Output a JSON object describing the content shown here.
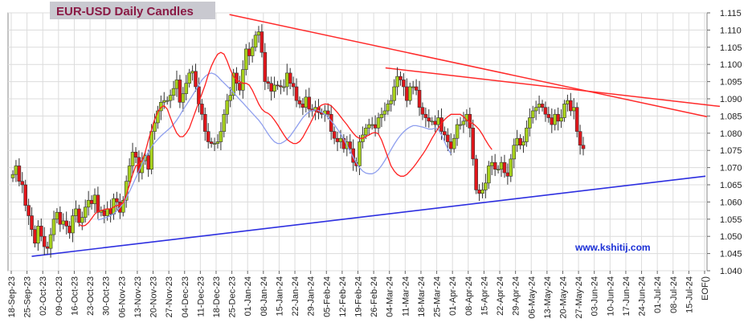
{
  "chart_data": {
    "type": "candlestick",
    "title": "EUR-USD Daily  Candles",
    "watermark": "www.kshitij.com",
    "xlabel": "",
    "ylabel": "",
    "ylim": [
      1.04,
      1.115
    ],
    "y_ticks": [
      "1.040",
      "1.045",
      "1.050",
      "1.055",
      "1.060",
      "1.065",
      "1.070",
      "1.075",
      "1.080",
      "1.085",
      "1.090",
      "1.095",
      "1.100",
      "1.105",
      "1.110",
      "1.115"
    ],
    "x_ticks": [
      "18-Sep-23",
      "25-Sep-23",
      "02-Oct-23",
      "09-Oct-23",
      "16-Oct-23",
      "23-Oct-23",
      "30-Oct-23",
      "06-Nov-23",
      "13-Nov-23",
      "20-Nov-23",
      "27-Nov-23",
      "04-Dec-23",
      "11-Dec-23",
      "18-Dec-23",
      "25-Dec-23",
      "01-Jan-24",
      "08-Jan-24",
      "15-Jan-24",
      "22-Jan-24",
      "29-Jan-24",
      "05-Feb-24",
      "12-Feb-24",
      "19-Feb-24",
      "26-Feb-24",
      "04-Mar-24",
      "11-Mar-24",
      "18-Mar-24",
      "25-Mar-24",
      "01-Apr-24",
      "08-Apr-24",
      "15-Apr-24",
      "22-Apr-24",
      "29-Apr-24",
      "06-May-24",
      "13-May-24",
      "20-May-24",
      "27-May-24",
      "03-Jun-24",
      "10-Jun-24",
      "17-Jun-24",
      "24-Jun-24",
      "01-Jul-24",
      "08-Jul-24",
      "15-Jul-24",
      "EOF()"
    ],
    "grid": true,
    "bull_color": "#a8d21c",
    "bear_color": "#e0161b",
    "sma_fast_color": "#ff2020",
    "sma_slow_color": "#8f9fee",
    "trendline_resistance_color": "#ff2a2a",
    "trendline_support_color": "#2d2fe0",
    "closes": [
      1.068,
      1.0705,
      1.066,
      1.065,
      1.059,
      1.056,
      1.052,
      1.048,
      1.053,
      1.05,
      1.047,
      1.0465,
      1.0505,
      1.055,
      1.057,
      1.0535,
      1.0545,
      1.053,
      1.051,
      1.056,
      1.058,
      1.054,
      1.0555,
      1.0585,
      1.0605,
      1.0595,
      1.062,
      1.057,
      1.0575,
      1.056,
      1.058,
      1.0565,
      1.061,
      1.06,
      1.057,
      1.0605,
      1.066,
      1.0705,
      1.0745,
      1.073,
      1.0685,
      1.072,
      1.0735,
      1.0695,
      1.0805,
      1.083,
      1.0865,
      1.089,
      1.0895,
      1.0895,
      1.091,
      1.093,
      1.0955,
      1.089,
      1.0915,
      1.0945,
      1.0975,
      1.098,
      1.0935,
      1.0885,
      1.0855,
      1.0805,
      1.0775,
      1.077,
      1.077,
      1.0775,
      1.0805,
      1.0855,
      1.0895,
      1.091,
      1.0975,
      1.0945,
      1.0925,
      1.0985,
      1.1045,
      1.1025,
      1.105,
      1.1085,
      1.1095,
      1.1035,
      1.095,
      1.0945,
      1.0922,
      1.094,
      1.0938,
      1.0935,
      1.0935,
      1.0975,
      1.0945,
      1.0935,
      1.0895,
      1.0885,
      1.0875,
      1.0905,
      1.087,
      1.0865,
      1.0875,
      1.086,
      1.0855,
      1.0865,
      1.0855,
      1.0805,
      1.0785,
      1.0775,
      1.0785,
      1.0755,
      1.0775,
      1.0755,
      1.0715,
      1.0705,
      1.0775,
      1.0795,
      1.0815,
      1.0825,
      1.0825,
      1.0815,
      1.0845,
      1.0855,
      1.0865,
      1.0885,
      1.0895,
      1.0935,
      1.0965,
      1.0955,
      1.0935,
      1.0895,
      1.0935,
      1.0935,
      1.0925,
      1.0875,
      1.0855,
      1.0845,
      1.0835,
      1.0835,
      1.0825,
      1.0845,
      1.0805,
      1.0795,
      1.0775,
      1.0755,
      1.0785,
      1.0825,
      1.0825,
      1.0835,
      1.0855,
      1.0815,
      1.0725,
      1.0635,
      1.0625,
      1.0635,
      1.0655,
      1.0705,
      1.0715,
      1.0695,
      1.0695,
      1.0715,
      1.0685,
      1.0675,
      1.0725,
      1.0765,
      1.0785,
      1.0765,
      1.0775,
      1.0815,
      1.0845,
      1.0865,
      1.0875,
      1.0885,
      1.0875,
      1.0855,
      1.0845,
      1.0825,
      1.0855,
      1.0835,
      1.0845,
      1.0885,
      1.0895,
      1.0865,
      1.0875,
      1.0805,
      1.0765,
      1.0755
    ],
    "sma_fast": [
      null,
      null,
      null,
      null,
      null,
      null,
      null,
      null,
      null,
      null,
      null,
      null,
      null,
      null,
      null,
      null,
      null,
      null,
      null,
      null,
      null,
      1.0535,
      1.053,
      1.0532,
      1.054,
      1.0552,
      1.0565,
      1.0572,
      1.0575,
      1.0578,
      1.058,
      1.058,
      1.0585,
      1.059,
      1.059,
      1.0598,
      1.062,
      1.065,
      1.068,
      1.0705,
      1.071,
      1.072,
      1.0745,
      1.078,
      1.081,
      1.084,
      1.0862,
      1.0875,
      1.088,
      1.087,
      1.0845,
      1.082,
      1.08,
      1.079,
      1.079,
      1.08,
      1.0815,
      1.084,
      1.0865,
      1.089,
      1.0915,
      1.094,
      1.097,
      1.0995,
      1.1015,
      1.103,
      1.1035,
      1.103,
      1.101,
      1.0985,
      1.0965,
      1.0955,
      1.095,
      1.0945,
      1.0945,
      1.094,
      1.0925,
      1.0905,
      1.0885,
      1.087,
      1.0862,
      1.0858,
      1.085,
      1.0838,
      1.0825,
      1.081,
      1.0795,
      1.0782,
      1.0775,
      1.077,
      1.077,
      1.0776,
      1.0788,
      1.0805,
      1.0822,
      1.084,
      1.086,
      1.0875,
      1.0882,
      1.0885,
      1.0884,
      1.088,
      1.087,
      1.086,
      1.0848,
      1.0836,
      1.0825,
      1.0812,
      1.08,
      1.079,
      1.0785,
      1.0785,
      1.079,
      1.0795,
      1.08,
      1.0802,
      1.0798,
      1.078,
      1.0755,
      1.073,
      1.0705,
      1.069,
      1.068,
      1.0675,
      1.0675,
      1.068,
      1.069,
      1.07,
      1.0712,
      1.0725,
      1.0738,
      1.0752,
      1.0768,
      1.0785,
      1.08,
      1.0815,
      1.0828,
      1.084,
      1.0848,
      1.0855,
      1.0855,
      1.0855,
      1.0855,
      1.0848,
      1.0838,
      1.0832,
      1.0828,
      1.082,
      1.081,
      1.0796,
      1.078,
      1.0765,
      1.0752
    ],
    "sma_slow": [
      null,
      null,
      null,
      null,
      null,
      null,
      null,
      null,
      null,
      null,
      null,
      null,
      null,
      null,
      null,
      null,
      null,
      null,
      null,
      null,
      null,
      null,
      null,
      null,
      null,
      null,
      null,
      1.0548,
      1.055,
      1.0553,
      1.0556,
      1.056,
      1.0566,
      1.0574,
      1.0584,
      1.0596,
      1.0612,
      1.063,
      1.065,
      1.067,
      1.069,
      1.071,
      1.0728,
      1.0745,
      1.076,
      1.0772,
      1.0782,
      1.0792,
      1.08,
      1.0808,
      1.0816,
      1.0826,
      1.0838,
      1.0852,
      1.0868,
      1.0882,
      1.0896,
      1.091,
      1.0925,
      1.094,
      1.0955,
      1.0965,
      1.0972,
      1.0975,
      1.0972,
      1.0965,
      1.0955,
      1.0946,
      1.0937,
      1.0928,
      1.0918,
      1.0908,
      1.0898,
      1.0888,
      1.0878,
      1.0868,
      1.0858,
      1.0848,
      1.0838,
      1.0826,
      1.0812,
      1.0798,
      1.0785,
      1.0775,
      1.077,
      1.077,
      1.0775,
      1.0782,
      1.0792,
      1.0805,
      1.0818,
      1.0832,
      1.0845,
      1.0855,
      1.0862,
      1.0866,
      1.0868,
      1.0866,
      1.0862,
      1.0855,
      1.0846,
      1.0836,
      1.0825,
      1.0812,
      1.0798,
      1.0782,
      1.0765,
      1.0748,
      1.073,
      1.0714,
      1.07,
      1.069,
      1.0684,
      1.0682,
      1.0682,
      1.0686,
      1.0694,
      1.0706,
      1.072,
      1.0736,
      1.0752,
      1.0768,
      1.0782,
      1.0794,
      1.0804,
      1.0812,
      1.0818,
      1.0822,
      1.0822,
      1.082,
      1.0818,
      1.0815,
      1.0812,
      1.0812,
      1.0815,
      1.081,
      1.0795,
      1.0775,
      1.0755,
      1.074
    ]
  }
}
